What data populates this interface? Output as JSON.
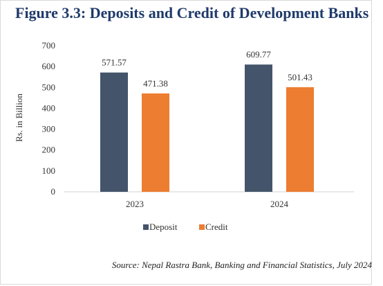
{
  "figure_title": "Figure 3.3: Deposits and Credit of Development Banks",
  "source_note": "Source: Nepal Rastra Bank, Banking and Financial Statistics, July 2024",
  "chart_data": {
    "type": "bar",
    "title": "Figure 3.3: Deposits and Credit of Development Banks",
    "xlabel": "",
    "ylabel": "Rs. in Billion",
    "categories": [
      "2023",
      "2024"
    ],
    "ylim": [
      0,
      700
    ],
    "yticks": [
      "0",
      "100",
      "200",
      "300",
      "400",
      "500",
      "600",
      "700"
    ],
    "grid": false,
    "legend_position": "bottom",
    "series": [
      {
        "name": "Deposit",
        "color": "#44546a",
        "values": [
          571.57,
          609.77
        ],
        "labels": [
          "571.57",
          "609.77"
        ]
      },
      {
        "name": "Credit",
        "color": "#ed7d31",
        "values": [
          471.38,
          501.43
        ],
        "labels": [
          "471.38",
          "501.43"
        ]
      }
    ]
  }
}
